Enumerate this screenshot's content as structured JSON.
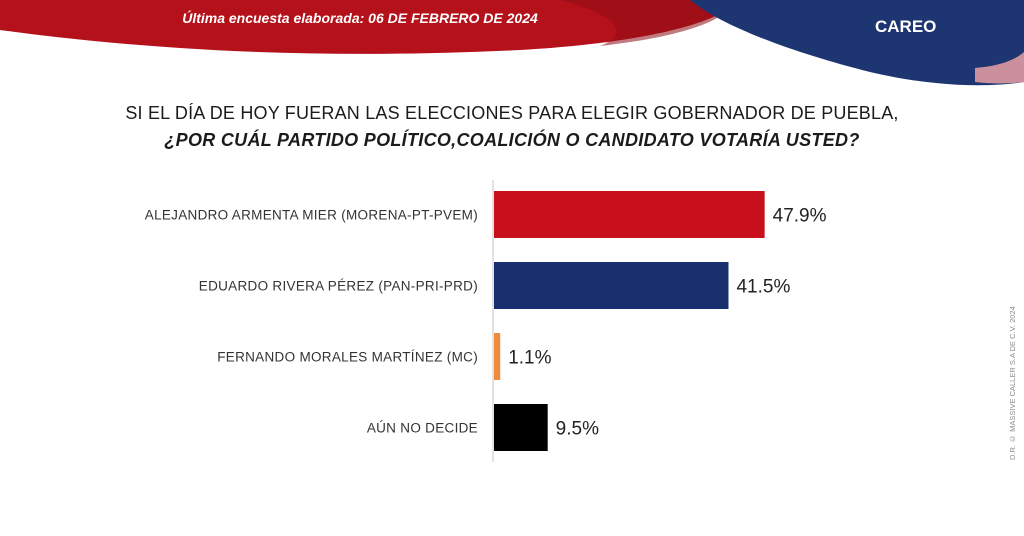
{
  "header": {
    "date_line": "Última encuesta elaborada: 06 DE FEBRERO DE 2024",
    "tag": "CAREO"
  },
  "question": {
    "line1": "SI EL DÍA DE HOY FUERAN LAS ELECCIONES PARA ELEGIR GOBERNADOR DE PUEBLA,",
    "line2": "¿POR CUÁL PARTIDO POLÍTICO,COALICIÓN  O CANDIDATO  VOTARÍA USTED?"
  },
  "colors": {
    "header_red": "#b5111b",
    "header_navy": "#1d3570",
    "accent_pink": "#e9a0a6"
  },
  "side_note": "D.R. © MASSIVE CALLER S.A DE C.V. 2024",
  "chart_data": {
    "type": "bar",
    "orientation": "horizontal",
    "title": "",
    "xlabel": "",
    "ylabel": "",
    "xlim": [
      0,
      60
    ],
    "grid": false,
    "categories": [
      "ALEJANDRO ARMENTA MIER (MORENA-PT-PVEM)",
      "EDUARDO RIVERA PÉREZ (PAN-PRI-PRD)",
      "FERNANDO MORALES MARTÍNEZ (MC)",
      "AÚN NO DECIDE"
    ],
    "values": [
      47.9,
      41.5,
      1.1,
      9.5
    ],
    "value_labels": [
      "47.9%",
      "41.5%",
      "1.1%",
      "9.5%"
    ],
    "colors": [
      "#c8101c",
      "#1a2f6e",
      "#f08a3c",
      "#000000"
    ]
  }
}
